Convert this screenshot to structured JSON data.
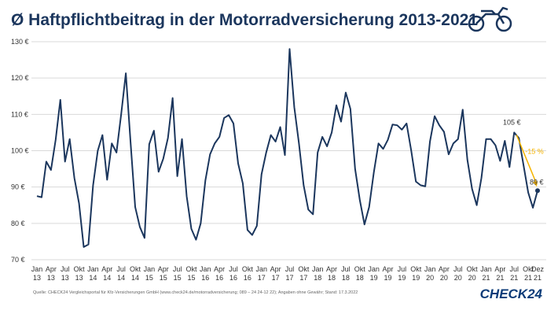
{
  "chart_data": {
    "type": "line",
    "title": "Ø Haftpflichtbeitrag in der Motorradversicherung 2013-2021",
    "categories": [
      "Jan 13",
      null,
      null,
      "Apr 13",
      null,
      null,
      "Jul 13",
      null,
      null,
      "Okt 13",
      null,
      null,
      "Jan 14",
      null,
      null,
      "Apr 14",
      null,
      null,
      "Jul 14",
      null,
      null,
      "Okt 14",
      null,
      null,
      "Jan 15",
      null,
      null,
      "Apr 15",
      null,
      null,
      "Jul 15",
      null,
      null,
      "Okt 15",
      null,
      null,
      "Jan 16",
      null,
      null,
      "Apr 16",
      null,
      null,
      "Jul 16",
      null,
      null,
      "Okt 16",
      null,
      null,
      "Jan 17",
      null,
      null,
      "Apr 17",
      null,
      null,
      "Jul 17",
      null,
      null,
      "Okt 17",
      null,
      null,
      "Jan 18",
      null,
      null,
      "Apr 18",
      null,
      null,
      "Jul 18",
      null,
      null,
      "Okt 18",
      null,
      null,
      "Jan 19",
      null,
      null,
      "Apr 19",
      null,
      null,
      "Jul 19",
      null,
      null,
      "Okt 19",
      null,
      null,
      "Jan 20",
      null,
      null,
      "Apr 20",
      null,
      null,
      "Jul 20",
      null,
      null,
      "Okt 20",
      null,
      null,
      "Jan 21",
      null,
      null,
      "Apr 21",
      null,
      null,
      "Jul 21",
      null,
      null,
      "Okt 21",
      null,
      "Dez 21"
    ],
    "series": [
      {
        "color": "#1b365d",
        "values": [
          87.5,
          87.2,
          97,
          94.7,
          103,
          114,
          97,
          103.2,
          92.5,
          85.5,
          73.5,
          74.2,
          90.5,
          100,
          104.3,
          92,
          102,
          99.5,
          110,
          121.3,
          102.5,
          84.5,
          79,
          76,
          101.8,
          105.5,
          94.2,
          97.8,
          103.5,
          114.5,
          93,
          103.2,
          87.5,
          78.5,
          75.5,
          80,
          91.8,
          99,
          102,
          103.8,
          109,
          109.8,
          107.5,
          96.5,
          91,
          78.2,
          76.8,
          79.3,
          93.5,
          99.5,
          104.3,
          102.5,
          106.5,
          98.8,
          128,
          112,
          102,
          90.5,
          83.8,
          82.5,
          99.5,
          103.8,
          101.2,
          105,
          112.5,
          108,
          116,
          111.5,
          95,
          86.5,
          79.7,
          84.5,
          94,
          102,
          100.5,
          103,
          107.2,
          107,
          105.8,
          107.5,
          100,
          91.5,
          90.5,
          90.2,
          102.5,
          109.5,
          107,
          105.2,
          99,
          102,
          103.2,
          111.3,
          97.5,
          89.5,
          85,
          92.5,
          103.2,
          103.2,
          101.5,
          97.2,
          102.7,
          95.5,
          105,
          103.5,
          96,
          88.5,
          84.3,
          89
        ]
      }
    ],
    "ylim": [
      70,
      130
    ],
    "yticks": [
      {
        "value": 70,
        "label": "70 €"
      },
      {
        "value": 80,
        "label": "80 €"
      },
      {
        "value": 90,
        "label": "90 €"
      },
      {
        "value": 100,
        "label": "100 €"
      },
      {
        "value": 110,
        "label": "110 €"
      },
      {
        "value": 120,
        "label": "120 €"
      },
      {
        "value": 130,
        "label": "130 €"
      }
    ],
    "grid": true,
    "annotations": [
      "105 €",
      "-15 %",
      "89 €"
    ],
    "annotation_color": "#f5b400",
    "source": "Quelle: CHECK24 Vergleichsportal für Kfz-Versicherungen GmbH (www.check24.de/motorradversicherung; 089 – 24 24-12 22); Angaben ohne Gewähr; Stand: 17.3.2022",
    "logo": "CHECK24"
  }
}
